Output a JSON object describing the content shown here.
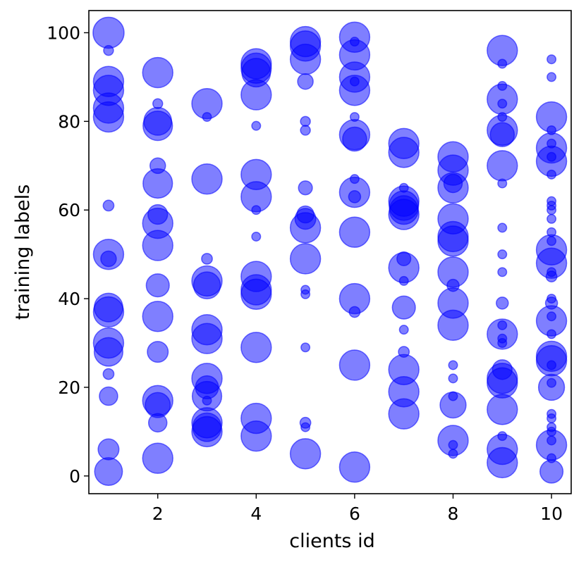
{
  "chart_data": {
    "type": "scatter",
    "title": "",
    "xlabel": "clients id",
    "ylabel": "training labels",
    "xlim": [
      0.6,
      10.4
    ],
    "ylim": [
      -4,
      105
    ],
    "xticks": [
      2,
      4,
      6,
      8,
      10
    ],
    "yticks": [
      0,
      20,
      40,
      60,
      80,
      100
    ],
    "grid": false,
    "legend": "none",
    "marker_color": "#0000ff",
    "marker_alpha": 0.5,
    "size_encoding": "relative sample count per label",
    "points": [
      {
        "x": 1,
        "y": 100,
        "s": 1.0
      },
      {
        "x": 1,
        "y": 96,
        "s": 0.1
      },
      {
        "x": 1,
        "y": 89,
        "s": 0.95
      },
      {
        "x": 1,
        "y": 87,
        "s": 0.95
      },
      {
        "x": 1,
        "y": 83,
        "s": 0.95
      },
      {
        "x": 1,
        "y": 81,
        "s": 0.95
      },
      {
        "x": 1,
        "y": 61,
        "s": 0.12
      },
      {
        "x": 1,
        "y": 50,
        "s": 0.95
      },
      {
        "x": 1,
        "y": 49,
        "s": 0.25
      },
      {
        "x": 1,
        "y": 38,
        "s": 0.85
      },
      {
        "x": 1,
        "y": 37,
        "s": 0.95
      },
      {
        "x": 1,
        "y": 30,
        "s": 0.95
      },
      {
        "x": 1,
        "y": 28,
        "s": 0.85
      },
      {
        "x": 1,
        "y": 23,
        "s": 0.12
      },
      {
        "x": 1,
        "y": 18,
        "s": 0.35
      },
      {
        "x": 1,
        "y": 6,
        "s": 0.45
      },
      {
        "x": 1,
        "y": 1,
        "s": 0.8
      },
      {
        "x": 2,
        "y": 91,
        "s": 0.95
      },
      {
        "x": 2,
        "y": 84,
        "s": 0.1
      },
      {
        "x": 2,
        "y": 80,
        "s": 0.8
      },
      {
        "x": 2,
        "y": 79,
        "s": 0.9
      },
      {
        "x": 2,
        "y": 70,
        "s": 0.25
      },
      {
        "x": 2,
        "y": 66,
        "s": 0.9
      },
      {
        "x": 2,
        "y": 59,
        "s": 0.4
      },
      {
        "x": 2,
        "y": 57,
        "s": 0.95
      },
      {
        "x": 2,
        "y": 52,
        "s": 0.95
      },
      {
        "x": 2,
        "y": 43,
        "s": 0.55
      },
      {
        "x": 2,
        "y": 36,
        "s": 0.95
      },
      {
        "x": 2,
        "y": 28,
        "s": 0.45
      },
      {
        "x": 2,
        "y": 17,
        "s": 0.95
      },
      {
        "x": 2,
        "y": 16,
        "s": 0.65
      },
      {
        "x": 2,
        "y": 12,
        "s": 0.35
      },
      {
        "x": 2,
        "y": 4,
        "s": 0.95
      },
      {
        "x": 3,
        "y": 84,
        "s": 0.95
      },
      {
        "x": 3,
        "y": 81,
        "s": 0.08
      },
      {
        "x": 3,
        "y": 67,
        "s": 0.95
      },
      {
        "x": 3,
        "y": 49,
        "s": 0.12
      },
      {
        "x": 3,
        "y": 44,
        "s": 0.95
      },
      {
        "x": 3,
        "y": 43,
        "s": 0.75
      },
      {
        "x": 3,
        "y": 33,
        "s": 0.95
      },
      {
        "x": 3,
        "y": 31,
        "s": 0.95
      },
      {
        "x": 3,
        "y": 22,
        "s": 0.95
      },
      {
        "x": 3,
        "y": 20,
        "s": 0.55
      },
      {
        "x": 3,
        "y": 18,
        "s": 0.9
      },
      {
        "x": 3,
        "y": 17,
        "s": 0.08
      },
      {
        "x": 3,
        "y": 12,
        "s": 0.95
      },
      {
        "x": 3,
        "y": 11,
        "s": 0.85
      },
      {
        "x": 3,
        "y": 10,
        "s": 0.95
      },
      {
        "x": 4,
        "y": 93,
        "s": 0.95
      },
      {
        "x": 4,
        "y": 92,
        "s": 0.95
      },
      {
        "x": 4,
        "y": 91,
        "s": 0.85
      },
      {
        "x": 4,
        "y": 86,
        "s": 0.95
      },
      {
        "x": 4,
        "y": 79,
        "s": 0.08
      },
      {
        "x": 4,
        "y": 68,
        "s": 0.95
      },
      {
        "x": 4,
        "y": 63,
        "s": 0.95
      },
      {
        "x": 4,
        "y": 60,
        "s": 0.08
      },
      {
        "x": 4,
        "y": 54,
        "s": 0.08
      },
      {
        "x": 4,
        "y": 45,
        "s": 0.95
      },
      {
        "x": 4,
        "y": 42,
        "s": 0.95
      },
      {
        "x": 4,
        "y": 41,
        "s": 0.95
      },
      {
        "x": 4,
        "y": 29,
        "s": 0.95
      },
      {
        "x": 4,
        "y": 13,
        "s": 0.95
      },
      {
        "x": 4,
        "y": 9,
        "s": 0.95
      },
      {
        "x": 5,
        "y": 98,
        "s": 0.95
      },
      {
        "x": 5,
        "y": 97,
        "s": 0.95
      },
      {
        "x": 5,
        "y": 94,
        "s": 0.95
      },
      {
        "x": 5,
        "y": 89,
        "s": 0.25
      },
      {
        "x": 5,
        "y": 80,
        "s": 0.1
      },
      {
        "x": 5,
        "y": 78,
        "s": 0.1
      },
      {
        "x": 5,
        "y": 65,
        "s": 0.2
      },
      {
        "x": 5,
        "y": 59,
        "s": 0.3
      },
      {
        "x": 5,
        "y": 58,
        "s": 0.45
      },
      {
        "x": 5,
        "y": 56,
        "s": 0.95
      },
      {
        "x": 5,
        "y": 49,
        "s": 0.95
      },
      {
        "x": 5,
        "y": 42,
        "s": 0.08
      },
      {
        "x": 5,
        "y": 41,
        "s": 0.08
      },
      {
        "x": 5,
        "y": 29,
        "s": 0.08
      },
      {
        "x": 5,
        "y": 12,
        "s": 0.12
      },
      {
        "x": 5,
        "y": 11,
        "s": 0.08
      },
      {
        "x": 5,
        "y": 5,
        "s": 0.95
      },
      {
        "x": 6,
        "y": 99,
        "s": 0.95
      },
      {
        "x": 6,
        "y": 98,
        "s": 0.08
      },
      {
        "x": 6,
        "y": 95,
        "s": 0.95
      },
      {
        "x": 6,
        "y": 90,
        "s": 0.95
      },
      {
        "x": 6,
        "y": 89,
        "s": 0.08
      },
      {
        "x": 6,
        "y": 87,
        "s": 0.95
      },
      {
        "x": 6,
        "y": 81,
        "s": 0.08
      },
      {
        "x": 6,
        "y": 77,
        "s": 0.95
      },
      {
        "x": 6,
        "y": 76,
        "s": 0.6
      },
      {
        "x": 6,
        "y": 67,
        "s": 0.08
      },
      {
        "x": 6,
        "y": 64,
        "s": 0.95
      },
      {
        "x": 6,
        "y": 63,
        "s": 0.15
      },
      {
        "x": 6,
        "y": 55,
        "s": 0.95
      },
      {
        "x": 6,
        "y": 40,
        "s": 0.95
      },
      {
        "x": 6,
        "y": 37,
        "s": 0.12
      },
      {
        "x": 6,
        "y": 25,
        "s": 0.95
      },
      {
        "x": 6,
        "y": 2,
        "s": 0.95
      },
      {
        "x": 7,
        "y": 75,
        "s": 0.95
      },
      {
        "x": 7,
        "y": 73,
        "s": 0.95
      },
      {
        "x": 7,
        "y": 65,
        "s": 0.08
      },
      {
        "x": 7,
        "y": 62,
        "s": 0.95
      },
      {
        "x": 7,
        "y": 61,
        "s": 0.9
      },
      {
        "x": 7,
        "y": 60,
        "s": 0.85
      },
      {
        "x": 7,
        "y": 59,
        "s": 0.95
      },
      {
        "x": 7,
        "y": 49,
        "s": 0.2
      },
      {
        "x": 7,
        "y": 47,
        "s": 0.95
      },
      {
        "x": 7,
        "y": 44,
        "s": 0.08
      },
      {
        "x": 7,
        "y": 38,
        "s": 0.55
      },
      {
        "x": 7,
        "y": 33,
        "s": 0.08
      },
      {
        "x": 7,
        "y": 28,
        "s": 0.12
      },
      {
        "x": 7,
        "y": 24,
        "s": 0.95
      },
      {
        "x": 7,
        "y": 19,
        "s": 0.95
      },
      {
        "x": 7,
        "y": 14,
        "s": 0.95
      },
      {
        "x": 8,
        "y": 72,
        "s": 0.95
      },
      {
        "x": 8,
        "y": 69,
        "s": 0.95
      },
      {
        "x": 8,
        "y": 66,
        "s": 0.35
      },
      {
        "x": 8,
        "y": 65,
        "s": 0.95
      },
      {
        "x": 8,
        "y": 58,
        "s": 0.95
      },
      {
        "x": 8,
        "y": 54,
        "s": 0.95
      },
      {
        "x": 8,
        "y": 53,
        "s": 0.95
      },
      {
        "x": 8,
        "y": 46,
        "s": 0.95
      },
      {
        "x": 8,
        "y": 43,
        "s": 0.15
      },
      {
        "x": 8,
        "y": 39,
        "s": 0.95
      },
      {
        "x": 8,
        "y": 34,
        "s": 0.95
      },
      {
        "x": 8,
        "y": 25,
        "s": 0.08
      },
      {
        "x": 8,
        "y": 22,
        "s": 0.08
      },
      {
        "x": 8,
        "y": 18,
        "s": 0.08
      },
      {
        "x": 8,
        "y": 16,
        "s": 0.7
      },
      {
        "x": 8,
        "y": 8,
        "s": 0.95
      },
      {
        "x": 8,
        "y": 7,
        "s": 0.08
      },
      {
        "x": 8,
        "y": 5,
        "s": 0.08
      },
      {
        "x": 9,
        "y": 96,
        "s": 0.95
      },
      {
        "x": 9,
        "y": 93,
        "s": 0.08
      },
      {
        "x": 9,
        "y": 88,
        "s": 0.08
      },
      {
        "x": 9,
        "y": 85,
        "s": 0.95
      },
      {
        "x": 9,
        "y": 84,
        "s": 0.08
      },
      {
        "x": 9,
        "y": 81,
        "s": 0.08
      },
      {
        "x": 9,
        "y": 78,
        "s": 0.95
      },
      {
        "x": 9,
        "y": 77,
        "s": 0.6
      },
      {
        "x": 9,
        "y": 70,
        "s": 0.95
      },
      {
        "x": 9,
        "y": 66,
        "s": 0.08
      },
      {
        "x": 9,
        "y": 56,
        "s": 0.08
      },
      {
        "x": 9,
        "y": 50,
        "s": 0.08
      },
      {
        "x": 9,
        "y": 46,
        "s": 0.08
      },
      {
        "x": 9,
        "y": 39,
        "s": 0.15
      },
      {
        "x": 9,
        "y": 34,
        "s": 0.08
      },
      {
        "x": 9,
        "y": 32,
        "s": 0.95
      },
      {
        "x": 9,
        "y": 31,
        "s": 0.08
      },
      {
        "x": 9,
        "y": 30,
        "s": 0.08
      },
      {
        "x": 9,
        "y": 24,
        "s": 0.4
      },
      {
        "x": 9,
        "y": 22,
        "s": 0.95
      },
      {
        "x": 9,
        "y": 21,
        "s": 0.95
      },
      {
        "x": 9,
        "y": 15,
        "s": 0.95
      },
      {
        "x": 9,
        "y": 9,
        "s": 0.08
      },
      {
        "x": 9,
        "y": 6,
        "s": 0.95
      },
      {
        "x": 9,
        "y": 3,
        "s": 0.95
      },
      {
        "x": 10,
        "y": 94,
        "s": 0.08
      },
      {
        "x": 10,
        "y": 90,
        "s": 0.08
      },
      {
        "x": 10,
        "y": 81,
        "s": 0.95
      },
      {
        "x": 10,
        "y": 78,
        "s": 0.08
      },
      {
        "x": 10,
        "y": 75,
        "s": 0.08
      },
      {
        "x": 10,
        "y": 74,
        "s": 0.95
      },
      {
        "x": 10,
        "y": 72,
        "s": 0.08
      },
      {
        "x": 10,
        "y": 71,
        "s": 0.95
      },
      {
        "x": 10,
        "y": 68,
        "s": 0.08
      },
      {
        "x": 10,
        "y": 62,
        "s": 0.08
      },
      {
        "x": 10,
        "y": 61,
        "s": 0.08
      },
      {
        "x": 10,
        "y": 60,
        "s": 0.08
      },
      {
        "x": 10,
        "y": 58,
        "s": 0.08
      },
      {
        "x": 10,
        "y": 55,
        "s": 0.08
      },
      {
        "x": 10,
        "y": 53,
        "s": 0.08
      },
      {
        "x": 10,
        "y": 51,
        "s": 0.95
      },
      {
        "x": 10,
        "y": 48,
        "s": 0.95
      },
      {
        "x": 10,
        "y": 46,
        "s": 0.08
      },
      {
        "x": 10,
        "y": 45,
        "s": 0.12
      },
      {
        "x": 10,
        "y": 40,
        "s": 0.08
      },
      {
        "x": 10,
        "y": 39,
        "s": 0.15
      },
      {
        "x": 10,
        "y": 36,
        "s": 0.08
      },
      {
        "x": 10,
        "y": 35,
        "s": 0.95
      },
      {
        "x": 10,
        "y": 32,
        "s": 0.08
      },
      {
        "x": 10,
        "y": 27,
        "s": 0.95
      },
      {
        "x": 10,
        "y": 26,
        "s": 0.95
      },
      {
        "x": 10,
        "y": 25,
        "s": 0.08
      },
      {
        "x": 10,
        "y": 21,
        "s": 0.08
      },
      {
        "x": 10,
        "y": 20,
        "s": 0.7
      },
      {
        "x": 10,
        "y": 14,
        "s": 0.08
      },
      {
        "x": 10,
        "y": 13,
        "s": 0.08
      },
      {
        "x": 10,
        "y": 11,
        "s": 0.08
      },
      {
        "x": 10,
        "y": 10,
        "s": 0.08
      },
      {
        "x": 10,
        "y": 8,
        "s": 0.08
      },
      {
        "x": 10,
        "y": 7,
        "s": 0.95
      },
      {
        "x": 10,
        "y": 4,
        "s": 0.08
      },
      {
        "x": 10,
        "y": 1,
        "s": 0.55
      }
    ]
  }
}
